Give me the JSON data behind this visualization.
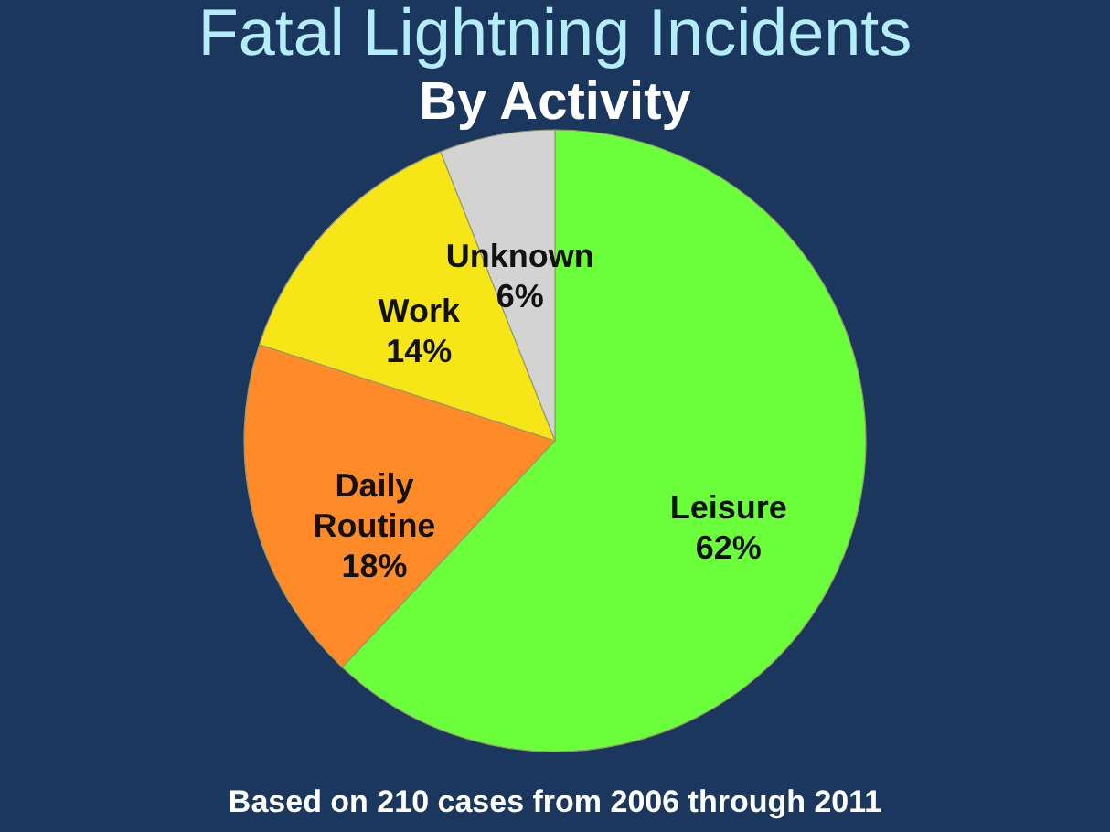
{
  "chart_data": {
    "type": "pie",
    "title": "Fatal Lightning Incidents",
    "subtitle": "By Activity",
    "categories": [
      "Leisure",
      "Daily Routine",
      "Work",
      "Unknown"
    ],
    "values": [
      62,
      18,
      14,
      6
    ],
    "colors": [
      "#6aff3a",
      "#ff8a28",
      "#f7e617",
      "#d3d3d3"
    ],
    "value_labels": [
      "62%",
      "18%",
      "14%",
      "6%"
    ],
    "annotations": [
      "Based on 210 cases from 2006 through 2011"
    ],
    "legend": false
  }
}
